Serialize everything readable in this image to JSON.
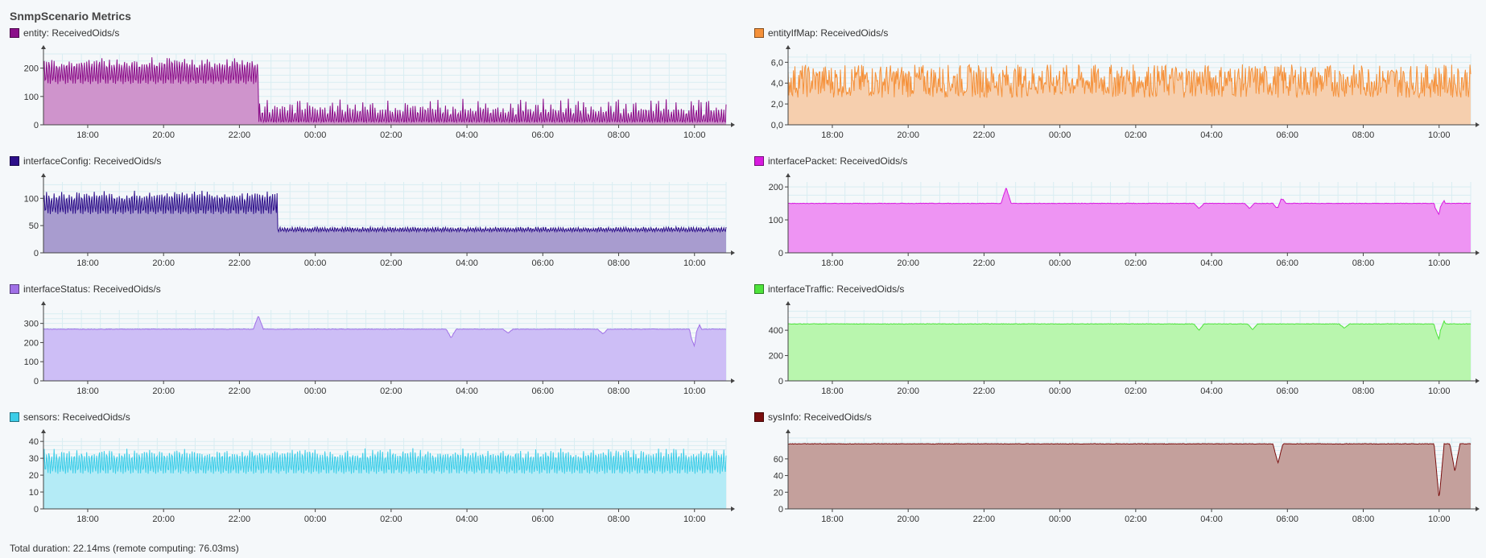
{
  "page": {
    "title": "SnmpScenario Metrics",
    "footer": "Total duration: 22.14ms (remote computing: 76.03ms)"
  },
  "x_tick_labels": [
    "18:00",
    "20:00",
    "22:00",
    "00:00",
    "02:00",
    "04:00",
    "06:00",
    "08:00",
    "10:00"
  ],
  "chart_data": [
    {
      "type": "area",
      "legend": "entity: ReceivedOids/s",
      "color": "#8b0f8a",
      "fill": "#cf94cc",
      "ylim": [
        0,
        250
      ],
      "y_ticks": [
        {
          "v": 0,
          "label": "0"
        },
        {
          "v": 100,
          "label": "100"
        },
        {
          "v": 200,
          "label": "200"
        }
      ],
      "x_range": [
        "16:50",
        "10:50"
      ],
      "profile": [
        {
          "from": "16:50",
          "to": "22:30",
          "low": 120,
          "high": 240,
          "pattern": "dense-oscillation"
        },
        {
          "from": "22:30",
          "to": "10:50",
          "low": 10,
          "high": 95,
          "pattern": "spiky-oscillation"
        }
      ]
    },
    {
      "type": "area",
      "legend": "entityIfMap: ReceivedOids/s",
      "color": "#f5913a",
      "fill": "#f6cfae",
      "ylim": [
        0,
        6.8
      ],
      "y_ticks": [
        {
          "v": 0,
          "label": "0,0"
        },
        {
          "v": 2,
          "label": "2,0"
        },
        {
          "v": 4,
          "label": "4,0"
        },
        {
          "v": 6,
          "label": "6,0"
        }
      ],
      "x_range": [
        "16:50",
        "10:50"
      ],
      "profile": [
        {
          "from": "16:50",
          "to": "10:50",
          "low": 2.6,
          "high": 5.8,
          "pattern": "dense-noise"
        }
      ]
    },
    {
      "type": "area",
      "legend": "interfaceConfig: ReceivedOids/s",
      "color": "#2d0f8a",
      "fill": "#a89ccf",
      "ylim": [
        0,
        130
      ],
      "y_ticks": [
        {
          "v": 0,
          "label": "0"
        },
        {
          "v": 50,
          "label": "50"
        },
        {
          "v": 100,
          "label": "100"
        }
      ],
      "x_range": [
        "16:50",
        "10:50"
      ],
      "profile": [
        {
          "from": "16:50",
          "to": "23:00",
          "low": 60,
          "high": 115,
          "pattern": "dense-oscillation"
        },
        {
          "from": "23:00",
          "to": "10:50",
          "low": 35,
          "high": 48,
          "pattern": "fine-oscillation"
        }
      ]
    },
    {
      "type": "area",
      "legend": "interfacePacket: ReceivedOids/s",
      "color": "#d81bdf",
      "fill": "#ee94f3",
      "ylim": [
        0,
        215
      ],
      "y_ticks": [
        {
          "v": 0,
          "label": "0"
        },
        {
          "v": 100,
          "label": "100"
        },
        {
          "v": 200,
          "label": "200"
        }
      ],
      "x_range": [
        "16:50",
        "10:50"
      ],
      "baseline": 150,
      "spikes": [
        {
          "t": "22:35",
          "v": 198
        },
        {
          "t": "03:40",
          "v": 135
        },
        {
          "t": "05:00",
          "v": 135
        },
        {
          "t": "05:45",
          "v": 130
        },
        {
          "t": "05:50",
          "v": 170
        },
        {
          "t": "10:00",
          "v": 90
        },
        {
          "t": "10:02",
          "v": 185
        }
      ]
    },
    {
      "type": "area",
      "legend": "interfaceStatus: ReceivedOids/s",
      "color": "#a070e6",
      "fill": "#cdbef6",
      "ylim": [
        0,
        370
      ],
      "y_ticks": [
        {
          "v": 0,
          "label": "0"
        },
        {
          "v": 100,
          "label": "100"
        },
        {
          "v": 200,
          "label": "200"
        },
        {
          "v": 300,
          "label": "300"
        }
      ],
      "x_range": [
        "16:50",
        "10:50"
      ],
      "baseline": 270,
      "spikes": [
        {
          "t": "22:30",
          "v": 340
        },
        {
          "t": "03:35",
          "v": 225
        },
        {
          "t": "05:05",
          "v": 250
        },
        {
          "t": "07:35",
          "v": 245
        },
        {
          "t": "10:00",
          "v": 140
        },
        {
          "t": "10:03",
          "v": 335
        }
      ]
    },
    {
      "type": "area",
      "legend": "interfaceTraffic: ReceivedOids/s",
      "color": "#4ee33b",
      "fill": "#b9f6ae",
      "ylim": [
        0,
        560
      ],
      "y_ticks": [
        {
          "v": 0,
          "label": "0"
        },
        {
          "v": 200,
          "label": "200"
        },
        {
          "v": 400,
          "label": "400"
        }
      ],
      "x_range": [
        "16:50",
        "10:50"
      ],
      "baseline": 450,
      "spikes": [
        {
          "t": "03:40",
          "v": 400
        },
        {
          "t": "05:05",
          "v": 405
        },
        {
          "t": "07:30",
          "v": 415
        },
        {
          "t": "10:00",
          "v": 260
        },
        {
          "t": "10:02",
          "v": 540
        }
      ]
    },
    {
      "type": "area",
      "legend": "sensors: ReceivedOids/s",
      "color": "#3ccde8",
      "fill": "#b4ebf6",
      "ylim": [
        0,
        42
      ],
      "y_ticks": [
        {
          "v": 0,
          "label": "0"
        },
        {
          "v": 10,
          "label": "10"
        },
        {
          "v": 20,
          "label": "20"
        },
        {
          "v": 30,
          "label": "30"
        },
        {
          "v": 40,
          "label": "40"
        }
      ],
      "x_range": [
        "16:50",
        "10:50"
      ],
      "profile": [
        {
          "from": "16:50",
          "to": "10:50",
          "low": 17,
          "high": 36,
          "pattern": "dense-oscillation"
        }
      ]
    },
    {
      "type": "area",
      "legend": "sysInfo: ReceivedOids/s",
      "color": "#7a0e0e",
      "fill": "#c4a09c",
      "ylim": [
        0,
        85
      ],
      "y_ticks": [
        {
          "v": 20,
          "label": "20"
        },
        {
          "v": 40,
          "label": "40"
        },
        {
          "v": 60,
          "label": "60"
        },
        {
          "v": 0,
          "label": "0"
        }
      ],
      "x_range": [
        "16:50",
        "10:50"
      ],
      "baseline": 78,
      "spikes": [
        {
          "t": "05:45",
          "v": 55
        },
        {
          "t": "10:00",
          "v": 12
        },
        {
          "t": "10:25",
          "v": 45
        }
      ]
    }
  ]
}
